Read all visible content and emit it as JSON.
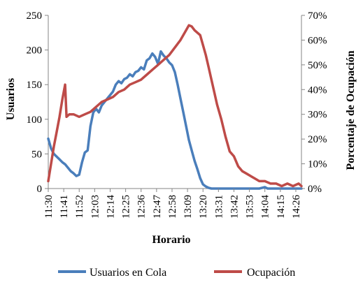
{
  "chart_data": {
    "type": "line",
    "title": "",
    "xlabel": "Horario",
    "ylabel": "Usuarios",
    "y2label": "Porcentaje de Ocupación",
    "ylim": [
      0,
      250
    ],
    "y2lim": [
      0,
      0.7
    ],
    "yticks": [
      "0",
      "50",
      "100",
      "150",
      "200",
      "250"
    ],
    "y2ticks": [
      "0%",
      "10%",
      "20%",
      "30%",
      "40%",
      "50%",
      "60%",
      "70%"
    ],
    "xticks": [
      "11:30",
      "11:41",
      "11:52",
      "12:03",
      "12:14",
      "12:25",
      "12:36",
      "12:47",
      "12:58",
      "13:09",
      "13:20",
      "13:31",
      "13:42",
      "13:53",
      "14:04",
      "14:15",
      "14:26"
    ],
    "x_start": "11:30",
    "x_end": "14:30",
    "grid": false,
    "legend_position": "bottom",
    "series": [
      {
        "name": "Usuarios en Cola",
        "axis": "left",
        "color": "#4a7ebb",
        "x": [
          "11:30",
          "11:32",
          "11:34",
          "11:36",
          "11:38",
          "11:40",
          "11:42",
          "11:44",
          "11:46",
          "11:48",
          "11:50",
          "11:52",
          "11:54",
          "11:56",
          "11:58",
          "12:00",
          "12:02",
          "12:04",
          "12:06",
          "12:08",
          "12:10",
          "12:12",
          "12:14",
          "12:16",
          "12:18",
          "12:20",
          "12:22",
          "12:24",
          "12:26",
          "12:28",
          "12:30",
          "12:32",
          "12:34",
          "12:36",
          "12:38",
          "12:40",
          "12:42",
          "12:44",
          "12:46",
          "12:48",
          "12:50",
          "12:52",
          "12:54",
          "12:56",
          "12:58",
          "13:00",
          "13:02",
          "13:04",
          "13:06",
          "13:08",
          "13:10",
          "13:12",
          "13:14",
          "13:16",
          "13:18",
          "13:20",
          "13:22",
          "13:24",
          "13:26",
          "13:28",
          "13:30",
          "13:40",
          "13:50",
          "14:00",
          "14:04",
          "14:06",
          "14:10",
          "14:20",
          "14:26",
          "14:30"
        ],
        "values": [
          72,
          58,
          50,
          46,
          42,
          38,
          35,
          30,
          25,
          22,
          18,
          20,
          38,
          52,
          55,
          90,
          110,
          115,
          110,
          120,
          125,
          130,
          135,
          140,
          150,
          155,
          152,
          158,
          160,
          165,
          162,
          168,
          170,
          175,
          172,
          185,
          188,
          195,
          190,
          180,
          198,
          192,
          188,
          182,
          178,
          168,
          150,
          130,
          110,
          90,
          70,
          55,
          40,
          28,
          15,
          6,
          3,
          1,
          0,
          0,
          0,
          0,
          0,
          0,
          2,
          0,
          0,
          0,
          0,
          0
        ]
      },
      {
        "name": "Ocupación",
        "axis": "right",
        "color": "#be4b48",
        "x": [
          "11:30",
          "11:32",
          "11:34",
          "11:36",
          "11:38",
          "11:40",
          "11:42",
          "11:43",
          "11:45",
          "11:48",
          "11:52",
          "11:56",
          "12:00",
          "12:04",
          "12:08",
          "12:12",
          "12:16",
          "12:20",
          "12:24",
          "12:28",
          "12:32",
          "12:36",
          "12:40",
          "12:44",
          "12:48",
          "12:52",
          "12:56",
          "13:00",
          "13:04",
          "13:06",
          "13:08",
          "13:10",
          "13:12",
          "13:14",
          "13:16",
          "13:18",
          "13:20",
          "13:22",
          "13:24",
          "13:26",
          "13:28",
          "13:30",
          "13:33",
          "13:36",
          "13:39",
          "13:42",
          "13:45",
          "13:48",
          "13:51",
          "13:54",
          "13:57",
          "14:00",
          "14:04",
          "14:08",
          "14:12",
          "14:16",
          "14:20",
          "14:24",
          "14:28",
          "14:30"
        ],
        "values": [
          0.03,
          0.1,
          0.17,
          0.23,
          0.29,
          0.36,
          0.42,
          0.29,
          0.3,
          0.3,
          0.29,
          0.3,
          0.31,
          0.33,
          0.35,
          0.36,
          0.37,
          0.39,
          0.4,
          0.42,
          0.43,
          0.44,
          0.46,
          0.48,
          0.5,
          0.52,
          0.54,
          0.57,
          0.6,
          0.62,
          0.64,
          0.66,
          0.655,
          0.64,
          0.63,
          0.62,
          0.58,
          0.54,
          0.49,
          0.44,
          0.39,
          0.34,
          0.28,
          0.21,
          0.15,
          0.13,
          0.09,
          0.07,
          0.06,
          0.05,
          0.04,
          0.03,
          0.03,
          0.02,
          0.02,
          0.01,
          0.02,
          0.01,
          0.02,
          0.01
        ]
      }
    ]
  }
}
